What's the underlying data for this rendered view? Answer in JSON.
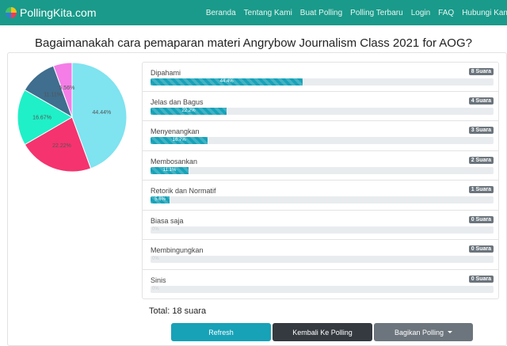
{
  "nav": {
    "brand": "PollingKita.com",
    "links": [
      "Beranda",
      "Tentang Kami",
      "Buat Polling",
      "Polling Terbaru",
      "Login",
      "FAQ",
      "Hubungi Kami"
    ]
  },
  "page_title": "Bagaimanakah cara pemaparan materi Angrybow Journalism Class 2021 for AOG?",
  "options": [
    {
      "label": "Dipahami",
      "votes": "8 Suara",
      "percent": "44.4%",
      "fraction": 0.444
    },
    {
      "label": "Jelas dan Bagus",
      "votes": "4 Suara",
      "percent": "22.2%",
      "fraction": 0.222
    },
    {
      "label": "Menyenangkan",
      "votes": "3 Suara",
      "percent": "16.7%",
      "fraction": 0.167
    },
    {
      "label": "Membosankan",
      "votes": "2 Suara",
      "percent": "11.1%",
      "fraction": 0.111
    },
    {
      "label": "Retorik dan Normatif",
      "votes": "1 Suara",
      "percent": "5.6%",
      "fraction": 0.056
    },
    {
      "label": "Biasa saja",
      "votes": "0 Suara",
      "percent": "0%",
      "fraction": 0
    },
    {
      "label": "Membingungkan",
      "votes": "0 Suara",
      "percent": "0%",
      "fraction": 0
    },
    {
      "label": "Sinis",
      "votes": "0 Suara",
      "percent": "0%",
      "fraction": 0
    }
  ],
  "chart_data": {
    "type": "pie",
    "categories": [
      "Dipahami",
      "Jelas dan Bagus",
      "Menyenangkan",
      "Membosankan",
      "Retorik dan Normatif"
    ],
    "values": [
      44.44,
      22.22,
      16.67,
      11.11,
      5.56
    ],
    "labels": [
      "44.44%",
      "22.22%",
      "16.67%",
      "11.11%",
      "5.56%"
    ],
    "colors": [
      "#7fe3f0",
      "#f5336f",
      "#1ff0c8",
      "#3f6e8e",
      "#f47de8"
    ],
    "start_angle_deg": 0
  },
  "total": "Total: 18 suara",
  "buttons": {
    "refresh": "Refresh",
    "back": "Kembali Ke Polling",
    "share": "Bagikan Polling"
  }
}
